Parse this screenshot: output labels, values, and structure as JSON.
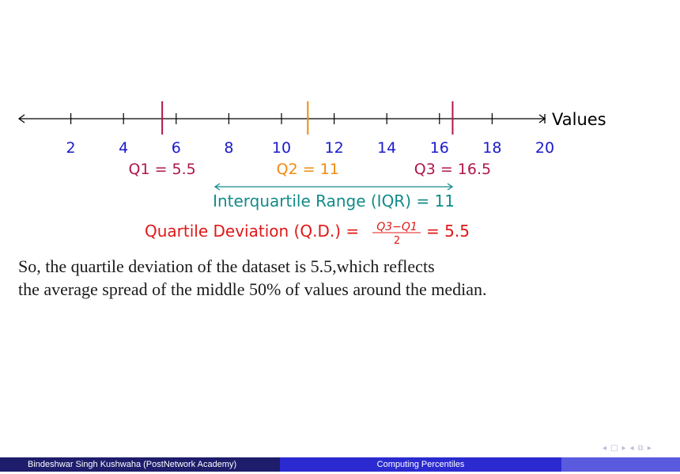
{
  "number_line": {
    "axis_label": "Values",
    "ticks": [
      2,
      4,
      6,
      8,
      10,
      12,
      14,
      16,
      18,
      20
    ],
    "xlim": [
      0,
      20
    ],
    "tick_color": "#1a1acc",
    "quartiles": [
      {
        "id": "q1",
        "value": 5.5,
        "label": "Q1 = 5.5",
        "color": "#b0164a"
      },
      {
        "id": "q2",
        "value": 11,
        "label": "Q2 = 11",
        "color": "#f08a10"
      },
      {
        "id": "q3",
        "value": 16.5,
        "label": "Q3 = 16.5",
        "color": "#b0164a"
      }
    ]
  },
  "iqr": {
    "label": "Interquartile Range (IQR) = 11",
    "color": "#138a8a"
  },
  "quartile_deviation": {
    "prefix": "Quartile Deviation (Q.D.) =",
    "numerator": "Q3−Q1",
    "denominator": "2",
    "suffix": "= 5.5",
    "color": "#e01818"
  },
  "body_text": {
    "line1": "So, the quartile deviation of the dataset is 5.5,which reflects",
    "line2": "the average spread of the middle 50% of values around the median."
  },
  "footer": {
    "author": "Bindeshwar Singh Kushwaha  (PostNetwork Academy)",
    "title": "Computing Percentiles"
  },
  "nav_icons": [
    "arrow-left-icon",
    "frame-icon",
    "arrow-right-icon",
    "arrow-left-icon",
    "section-icon",
    "arrow-right-icon"
  ]
}
